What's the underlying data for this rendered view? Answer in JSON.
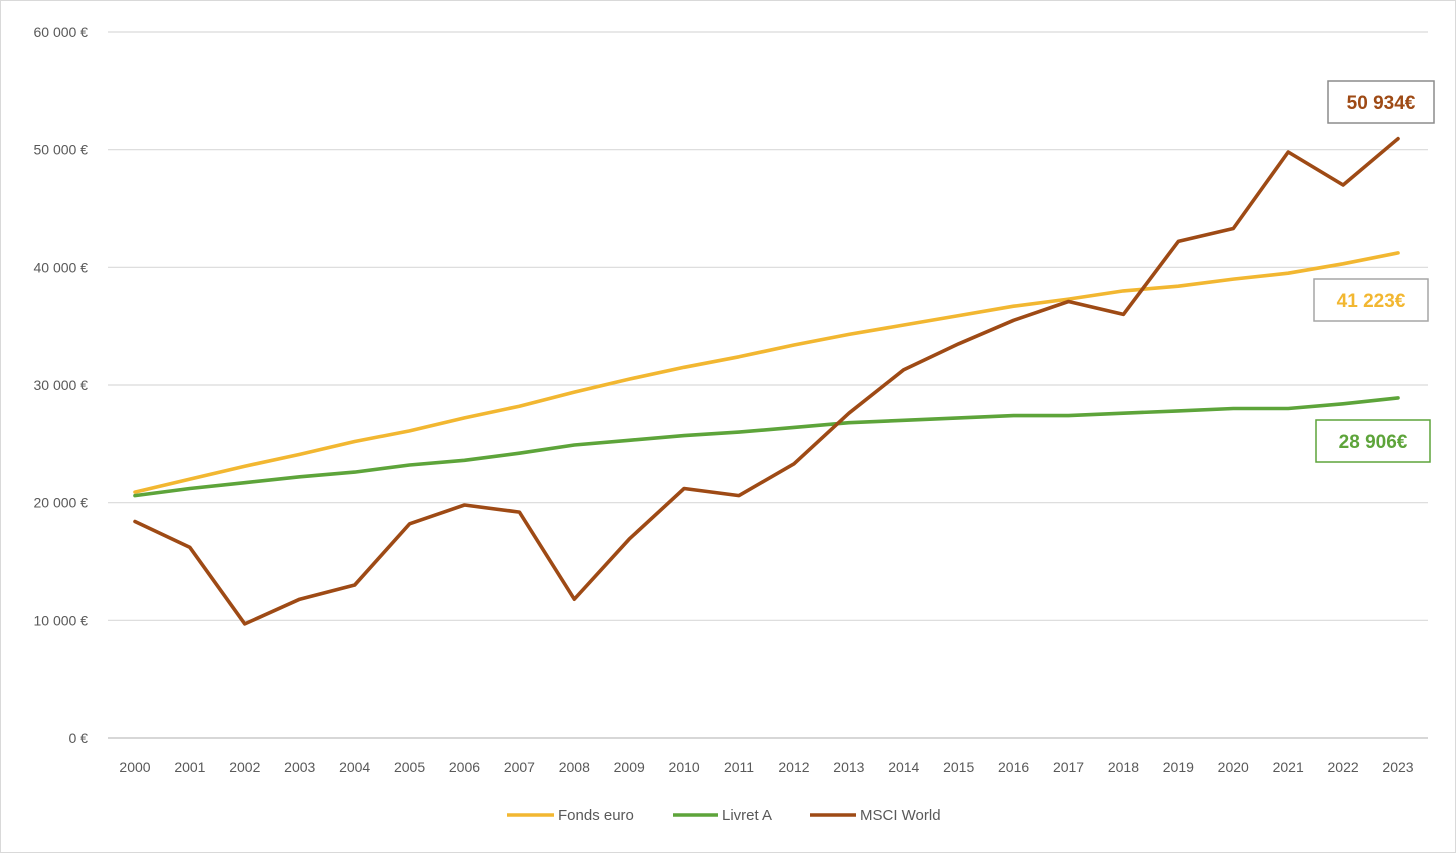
{
  "chart_data": {
    "type": "line",
    "title": "",
    "xlabel": "",
    "ylabel": "",
    "categories": [
      "2000",
      "2001",
      "2002",
      "2003",
      "2004",
      "2005",
      "2006",
      "2007",
      "2008",
      "2009",
      "2010",
      "2011",
      "2012",
      "2013",
      "2014",
      "2015",
      "2016",
      "2017",
      "2018",
      "2019",
      "2020",
      "2021",
      "2022",
      "2023"
    ],
    "ylim": [
      0,
      60000
    ],
    "y_ticks": [
      0,
      10000,
      20000,
      30000,
      40000,
      50000,
      60000
    ],
    "y_tick_labels": [
      "0 €",
      "10 000 €",
      "20 000 €",
      "30 000 €",
      "40 000 €",
      "50 000 €",
      "60 000 €"
    ],
    "grid": true,
    "legend_position": "bottom",
    "series": [
      {
        "name": "Fonds euro",
        "color": "#F2B731",
        "values": [
          20900,
          22000,
          23100,
          24100,
          25200,
          26100,
          27200,
          28200,
          29400,
          30500,
          31500,
          32400,
          33400,
          34300,
          35100,
          35900,
          36700,
          37300,
          38000,
          38400,
          39000,
          39500,
          40300,
          41223
        ]
      },
      {
        "name": "Livret A",
        "color": "#5DA43A",
        "values": [
          20600,
          21200,
          21700,
          22200,
          22600,
          23200,
          23600,
          24200,
          24900,
          25300,
          25700,
          26000,
          26400,
          26800,
          27000,
          27200,
          27400,
          27400,
          27600,
          27800,
          28000,
          28000,
          28400,
          28906
        ]
      },
      {
        "name": "MSCI World",
        "color": "#9E4A15",
        "values": [
          18400,
          16200,
          9700,
          11800,
          13000,
          18200,
          19800,
          19200,
          11800,
          16900,
          21200,
          20600,
          23300,
          27600,
          31300,
          33500,
          35500,
          37100,
          36000,
          42200,
          43300,
          49800,
          47000,
          50934
        ]
      }
    ],
    "annotations": [
      {
        "text": "50 934€",
        "color": "#9E4A15",
        "border": "#8C8C8C",
        "series": "MSCI World"
      },
      {
        "text": "41 223€",
        "color": "#F2B731",
        "border": "#A6A6A6",
        "series": "Fonds euro"
      },
      {
        "text": "28 906€",
        "color": "#5DA43A",
        "border": "#5DA43A",
        "series": "Livret A"
      }
    ]
  }
}
